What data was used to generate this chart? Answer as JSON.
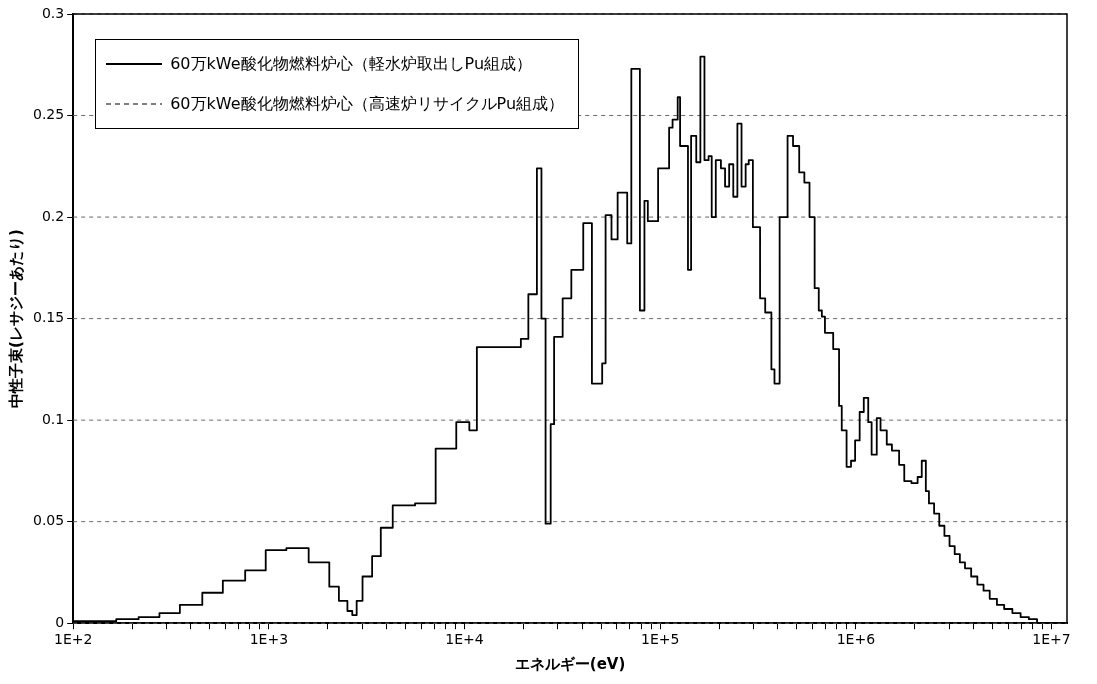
{
  "chart_data": {
    "type": "step",
    "xlabel": "エネルギー(eV)",
    "ylabel": "中性子束(レサジーあたり)",
    "log": "x",
    "grid": "y",
    "legend": "top left",
    "marker": "none",
    "xlim": [
      100,
      12000000
    ],
    "ylim": [
      0,
      0.3
    ],
    "yticks": [
      0,
      0.05,
      0.1,
      0.15,
      0.2,
      0.25,
      0.3
    ],
    "xticks": [
      {
        "value": 100,
        "label": "1E+2"
      },
      {
        "value": 200,
        "label": null
      },
      {
        "value": 300,
        "label": null
      },
      {
        "value": 400,
        "label": null
      },
      {
        "value": 500,
        "label": null
      },
      {
        "value": 600,
        "label": null
      },
      {
        "value": 700,
        "label": null
      },
      {
        "value": 800,
        "label": null
      },
      {
        "value": 900,
        "label": null
      },
      {
        "value": 1000,
        "label": "1E+3"
      },
      {
        "value": 2000,
        "label": null
      },
      {
        "value": 3000,
        "label": null
      },
      {
        "value": 4000,
        "label": null
      },
      {
        "value": 5000,
        "label": null
      },
      {
        "value": 6000,
        "label": null
      },
      {
        "value": 7000,
        "label": null
      },
      {
        "value": 8000,
        "label": null
      },
      {
        "value": 9000,
        "label": null
      },
      {
        "value": 10000,
        "label": "1E+4"
      },
      {
        "value": 20000,
        "label": null
      },
      {
        "value": 30000,
        "label": null
      },
      {
        "value": 40000,
        "label": null
      },
      {
        "value": 50000,
        "label": null
      },
      {
        "value": 60000,
        "label": null
      },
      {
        "value": 70000,
        "label": null
      },
      {
        "value": 80000,
        "label": null
      },
      {
        "value": 90000,
        "label": null
      },
      {
        "value": 100000,
        "label": "1E+5"
      },
      {
        "value": 200000,
        "label": null
      },
      {
        "value": 300000,
        "label": null
      },
      {
        "value": 400000,
        "label": null
      },
      {
        "value": 500000,
        "label": null
      },
      {
        "value": 600000,
        "label": null
      },
      {
        "value": 700000,
        "label": null
      },
      {
        "value": 800000,
        "label": null
      },
      {
        "value": 900000,
        "label": null
      },
      {
        "value": 1000000,
        "label": "1E+6"
      },
      {
        "value": 2000000,
        "label": null
      },
      {
        "value": 3000000,
        "label": null
      },
      {
        "value": 4000000,
        "label": null
      },
      {
        "value": 5000000,
        "label": null
      },
      {
        "value": 6000000,
        "label": null
      },
      {
        "value": 7000000,
        "label": null
      },
      {
        "value": 8000000,
        "label": null
      },
      {
        "value": 9000000,
        "label": null
      },
      {
        "value": 10000000,
        "label": "1E+7"
      }
    ],
    "series": [
      {
        "name": "60万kWe酸化物燃料炉心（軽水炉取出しPu組成）",
        "color": "#000000",
        "line_style": "solid",
        "x": [
          100,
          166,
          216,
          276,
          351,
          457,
          582,
          757,
          964,
          1229,
          1598,
          2037,
          2280,
          2521,
          2669,
          2811,
          3012,
          3372,
          3734,
          4297,
          5589,
          7122,
          9077,
          10585,
          11566,
          19410,
          21200,
          23440,
          24730,
          25960,
          27570,
          28700,
          31740,
          35150,
          40450,
          44790,
          50540,
          52610,
          56390,
          60620,
          67850,
          71220,
          78770,
          83100,
          86480,
          97610,
          111100,
          115700,
          122900,
          126400,
          138700,
          143900,
          152900,
          160500,
          168400,
          176800,
          183400,
          192400,
          204400,
          214600,
          225200,
          236400,
          248100,
          260500,
          273400,
          283600,
          297700,
          324000,
          344200,
          370200,
          383900,
          407900,
          447800,
          477500,
          513500,
          545600,
          579700,
          615800,
          646400,
          670400,
          695200,
          766000,
          820900,
          847200,
          896800,
          944700,
          991500,
          1046000,
          1098000,
          1157000,
          1204000,
          1279000,
          1337000,
          1439000,
          1529000,
          1664000,
          1768000,
          1924000,
          2069000,
          2172000,
          2279000,
          2364000,
          2512000,
          2669000,
          2836000,
          3012000,
          3201000,
          3401000,
          3613000,
          3885000,
          4179000,
          4494000,
          4833000,
          5262000,
          5728000,
          6310000,
          6952000,
          7660000,
          8437000,
          9643000,
          12000000
        ],
        "values": [
          0,
          0.001,
          0.002,
          0.003,
          0.005,
          0.009,
          0.015,
          0.021,
          0.026,
          0.036,
          0.037,
          0.03,
          0.018,
          0.011,
          0.006,
          0.004,
          0.011,
          0.023,
          0.033,
          0.047,
          0.058,
          0.059,
          0.086,
          0.099,
          0.095,
          0.136,
          0.14,
          0.162,
          0.224,
          0.15,
          0.049,
          0.098,
          0.141,
          0.16,
          0.174,
          0.197,
          0.118,
          0.128,
          0.201,
          0.189,
          0.212,
          0.187,
          0.273,
          0.154,
          0.208,
          0.198,
          0.224,
          0.244,
          0.248,
          0.259,
          0.235,
          0.174,
          0.24,
          0.227,
          0.279,
          0.228,
          0.23,
          0.2,
          0.228,
          0.224,
          0.215,
          0.226,
          0.21,
          0.246,
          0.215,
          0.226,
          0.228,
          0.195,
          0.16,
          0.153,
          0.125,
          0.118,
          0.2,
          0.24,
          0.235,
          0.222,
          0.217,
          0.2,
          0.165,
          0.154,
          0.151,
          0.143,
          0.135,
          0.107,
          0.095,
          0.077,
          0.08,
          0.09,
          0.104,
          0.111,
          0.099,
          0.083,
          0.101,
          0.095,
          0.088,
          0.085,
          0.078,
          0.07,
          0.069,
          0.072,
          0.08,
          0.065,
          0.059,
          0.054,
          0.048,
          0.043,
          0.038,
          0.034,
          0.03,
          0.027,
          0.023,
          0.019,
          0.016,
          0.012,
          0.009,
          0.007,
          0.005,
          0.003,
          0.002,
          0,
          0
        ]
      },
      {
        "name": "60万kWe酸化物燃料炉心（高速炉リサイクルPu組成）",
        "color": "#000000",
        "line_style": "dashed"
      }
    ]
  }
}
